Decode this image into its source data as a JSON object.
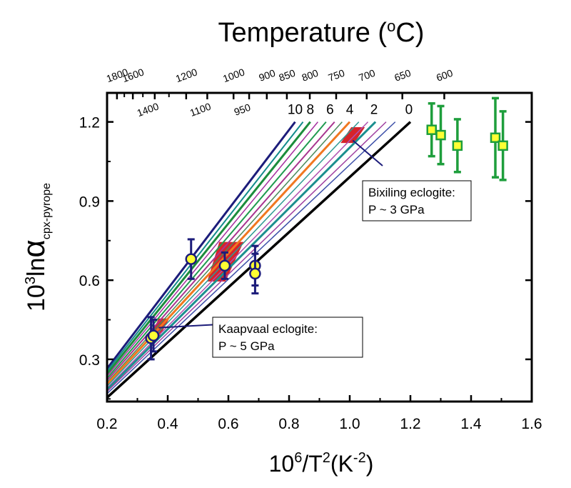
{
  "chart_data": {
    "type": "line",
    "top_axis": {
      "title": "Temperature (",
      "title_degree": "o",
      "title_unit": "C)",
      "ticks_row1": [
        {
          "t": 1800,
          "label": "1800"
        },
        {
          "t": 1600,
          "label": "1600"
        },
        {
          "t": 1200,
          "label": "1200"
        },
        {
          "t": 1000,
          "label": "1000"
        },
        {
          "t": 900,
          "label": "900"
        },
        {
          "t": 850,
          "label": "850"
        },
        {
          "t": 800,
          "label": "800"
        },
        {
          "t": 750,
          "label": "750"
        },
        {
          "t": 700,
          "label": "700"
        },
        {
          "t": 650,
          "label": "650"
        },
        {
          "t": 600,
          "label": "600"
        }
      ],
      "ticks_row2": [
        {
          "t": 1400,
          "label": "1400"
        },
        {
          "t": 1100,
          "label": "1100"
        },
        {
          "t": 950,
          "label": "950"
        }
      ],
      "minor_ticks": [
        1700,
        1500,
        1300
      ]
    },
    "xaxis": {
      "label_base": "10",
      "label_exp": "6",
      "label_mid": "/T",
      "label_exp2": "2",
      "label_unit": "(K",
      "label_unit_exp": "-2",
      "label_close": ")",
      "range": [
        0.2,
        1.6
      ],
      "ticks": [
        0.2,
        0.4,
        0.6,
        0.8,
        1.0,
        1.2,
        1.4,
        1.6
      ],
      "tick_labels": [
        "0.2",
        "0.4",
        "0.6",
        "0.8",
        "1.0",
        "1.2",
        "1.4",
        "1.6"
      ]
    },
    "yaxis": {
      "label_base": "10",
      "label_exp": "3",
      "label_ln": "ln",
      "label_alpha": "α",
      "label_sub": "cpx-pyrope",
      "range": [
        0.14,
        1.31
      ],
      "ticks": [
        0.3,
        0.6,
        0.9,
        1.2
      ],
      "tick_labels": [
        "0.3",
        "0.6",
        "0.9",
        "1.2"
      ]
    },
    "series": [
      {
        "x": [
          0.2,
          0.82
        ],
        "y": [
          0.265,
          1.2
        ],
        "color": "#1c1c7a",
        "width": 3
      },
      {
        "x": [
          0.2,
          0.846
        ],
        "y": [
          0.255,
          1.2
        ],
        "color": "#138b8b",
        "width": 2
      },
      {
        "x": [
          0.2,
          0.87
        ],
        "y": [
          0.245,
          1.2
        ],
        "color": "#1c8c3c",
        "width": 3
      },
      {
        "x": [
          0.2,
          0.895
        ],
        "y": [
          0.236,
          1.2
        ],
        "color": "#a62f9f",
        "width": 1.5
      },
      {
        "x": [
          0.2,
          0.922
        ],
        "y": [
          0.228,
          1.2
        ],
        "color": "#1f9b4f",
        "width": 2
      },
      {
        "x": [
          0.2,
          0.95
        ],
        "y": [
          0.22,
          1.2
        ],
        "color": "#a8348f",
        "width": 2
      },
      {
        "x": [
          0.2,
          0.975
        ],
        "y": [
          0.212,
          1.2
        ],
        "color": "#4a8a5c",
        "width": 1.5
      },
      {
        "x": [
          0.2,
          1.0
        ],
        "y": [
          0.205,
          1.2
        ],
        "color": "#f07820",
        "width": 3
      },
      {
        "x": [
          0.2,
          1.03
        ],
        "y": [
          0.198,
          1.2
        ],
        "color": "#2f9a94",
        "width": 1.5
      },
      {
        "x": [
          0.2,
          1.06
        ],
        "y": [
          0.191,
          1.2
        ],
        "color": "#b04fb0",
        "width": 1.5
      },
      {
        "x": [
          0.2,
          1.085
        ],
        "y": [
          0.185,
          1.2
        ],
        "color": "#1c8f8f",
        "width": 3
      },
      {
        "x": [
          0.2,
          1.12
        ],
        "y": [
          0.178,
          1.2
        ],
        "color": "#a040a0",
        "width": 1.5
      },
      {
        "x": [
          0.2,
          1.15
        ],
        "y": [
          0.17,
          1.2
        ],
        "color": "#3c4fa8",
        "width": 1.5
      },
      {
        "x": [
          0.2,
          1.2
        ],
        "y": [
          0.155,
          1.2
        ],
        "color": "#000000",
        "width": 3.5
      }
    ],
    "line_labels": [
      {
        "text": "10",
        "x": 0.82,
        "y": 1.225
      },
      {
        "text": "8",
        "x": 0.87,
        "y": 1.225
      },
      {
        "text": "6",
        "x": 0.935,
        "y": 1.225
      },
      {
        "text": "4",
        "x": 1.0,
        "y": 1.225
      },
      {
        "text": "2",
        "x": 1.08,
        "y": 1.225
      },
      {
        "text": "0",
        "x": 1.195,
        "y": 1.225
      }
    ],
    "red_regions": [
      {
        "pts": [
          [
            0.97,
            1.12
          ],
          [
            1.005,
            1.18
          ],
          [
            1.05,
            1.18
          ],
          [
            1.015,
            1.12
          ]
        ]
      },
      {
        "pts": [
          [
            0.53,
            0.595
          ],
          [
            0.57,
            0.745
          ],
          [
            0.65,
            0.745
          ],
          [
            0.59,
            0.595
          ]
        ]
      },
      {
        "pts": [
          [
            0.34,
            0.38
          ],
          [
            0.37,
            0.455
          ],
          [
            0.405,
            0.455
          ],
          [
            0.37,
            0.38
          ]
        ]
      }
    ],
    "blue_points": [
      {
        "x": 0.345,
        "y": 0.38,
        "err": 0.08
      },
      {
        "x": 0.353,
        "y": 0.39,
        "err": 0.06
      },
      {
        "x": 0.477,
        "y": 0.68,
        "err": 0.075
      },
      {
        "x": 0.588,
        "y": 0.655,
        "err": 0.05
      },
      {
        "x": 0.688,
        "y": 0.655,
        "err": 0.075
      },
      {
        "x": 0.688,
        "y": 0.625,
        "err": 0.075
      }
    ],
    "green_points": [
      {
        "x": 1.27,
        "y": 1.17,
        "err": 0.1
      },
      {
        "x": 1.3,
        "y": 1.15,
        "err": 0.11
      },
      {
        "x": 1.355,
        "y": 1.11,
        "err": 0.1
      },
      {
        "x": 1.48,
        "y": 1.14,
        "err": 0.15
      },
      {
        "x": 1.505,
        "y": 1.11,
        "err": 0.13
      }
    ],
    "callouts": [
      {
        "line1": "Bixiling eclogite:",
        "line2": "P ~ 3 GPa",
        "target": [
          1.01,
          1.13
        ]
      },
      {
        "line1": "Kaapvaal eclogite:",
        "line2": "P ~ 5 GPa",
        "target": [
          0.37,
          0.42
        ]
      }
    ],
    "colors": {
      "blue_marker": "#1c1c7a",
      "yellow_fill": "#ffff33",
      "green_marker": "#1e9e3c",
      "red_fill": "#d6242a"
    }
  }
}
